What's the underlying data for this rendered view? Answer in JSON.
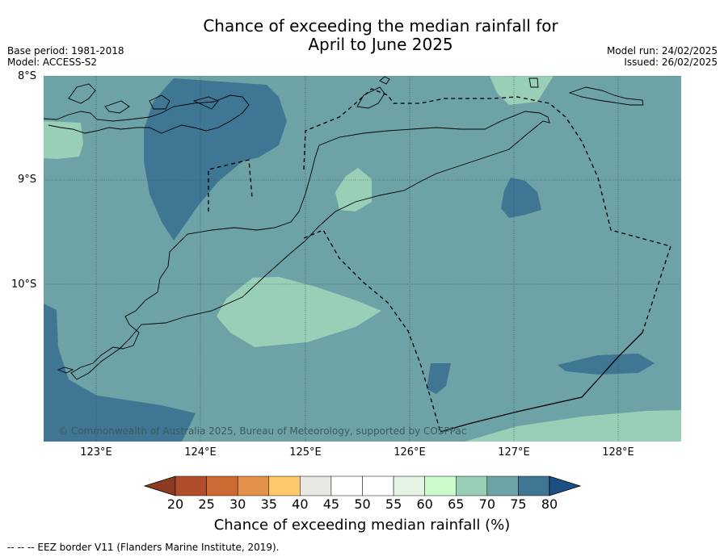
{
  "title": {
    "line1": "Chance of exceeding the median rainfall for",
    "line2": "April to June 2025"
  },
  "meta_left": {
    "base_period": "Base period: 1981-2018",
    "model": "Model: ACCESS-S2"
  },
  "meta_right": {
    "model_run": "Model run: 24/02/2025",
    "issued": "Issued: 26/02/2025"
  },
  "map": {
    "lat_labels": [
      "8°S",
      "9°S",
      "10°S"
    ],
    "lon_labels": [
      "123°E",
      "124°E",
      "125°E",
      "126°E",
      "127°E",
      "128°E"
    ],
    "copyright": "© Commonwealth of Australia 2025, Bureau of Meteorology, supported by COSPPac"
  },
  "colorbar": {
    "ticks": [
      "20",
      "25",
      "30",
      "35",
      "40",
      "45",
      "50",
      "55",
      "60",
      "65",
      "70",
      "75",
      "80"
    ],
    "colors": [
      "#b24d2b",
      "#cd6a34",
      "#e2914a",
      "#fdc96a",
      "#e8e8e2",
      "#ffffff",
      "#ffffff",
      "#e4f3e3",
      "#ccfccb",
      "#99cfb6",
      "#6da3a6",
      "#3f7694"
    ],
    "under_color": "#8c3a22",
    "over_color": "#1d4f85",
    "label": "Chance of exceeding median rainfall (%)"
  },
  "footnote": "--  --  -- EEZ border V11 (Flanders Marine Institute, 2019)."
}
